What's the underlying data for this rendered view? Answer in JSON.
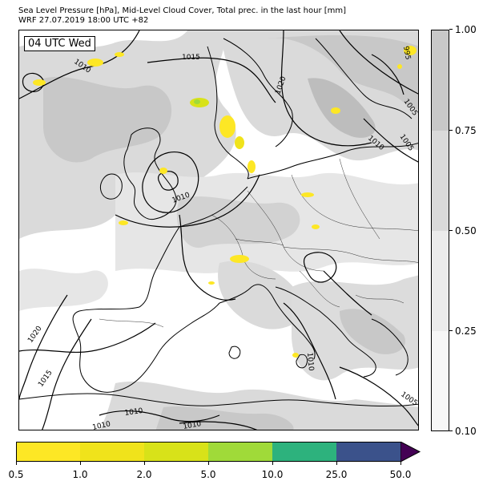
{
  "title_line1": "Sea Level Pressure [hPa], Mid-Level Cloud Cover, Total prec. in the last hour [mm]",
  "title_line2": "WRF 27.07.2019 18:00 UTC +82",
  "time_label": "04 UTC Wed",
  "isobar_labels": [
    "1010",
    "1015",
    "1020",
    "1020",
    "1010",
    "1005",
    "1005",
    "995",
    "1010",
    "1020",
    "1015",
    "1010",
    "1010",
    "1010",
    "1010",
    "1005"
  ],
  "cloud_colorbar": {
    "ticks": [
      "0.10",
      "0.25",
      "0.50",
      "0.75",
      "1.00"
    ],
    "colors": [
      "#f7f7f7",
      "#ebebeb",
      "#dadada",
      "#c8c8c8"
    ]
  },
  "precip_colorbar": {
    "ticks": [
      "0.5",
      "1.0",
      "2.0",
      "5.0",
      "10.0",
      "25.0",
      "50.0"
    ],
    "colors": [
      "#fde725",
      "#f0e31b",
      "#d8e219",
      "#a0da39",
      "#2db27d",
      "#3b528b"
    ],
    "extend_color": "#440154"
  }
}
